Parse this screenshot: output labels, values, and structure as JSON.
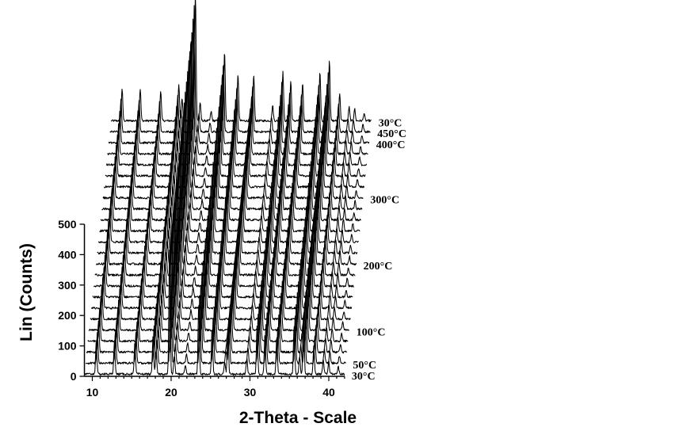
{
  "chart_data": {
    "type": "line",
    "title": "",
    "xlabel": "2-Theta - Scale",
    "ylabel": "Lin (Counts)",
    "xlim": [
      9,
      42
    ],
    "ylim": [
      0,
      500
    ],
    "x_ticks": [
      10,
      20,
      30,
      40
    ],
    "y_ticks": [
      0,
      100,
      200,
      300,
      400,
      500
    ],
    "grid": false,
    "layout": "stacked waterfall, 24 patterns offset upward and to the right",
    "series_count": 24,
    "peaks_2theta": [
      10.5,
      12.8,
      15.4,
      17.7,
      18.1,
      19.8,
      20.4,
      21.8,
      23.5,
      25.2,
      26.8,
      27.2,
      29.6,
      30.9,
      31.9,
      33.4,
      35.6,
      36.3,
      36.8,
      38.1,
      39.3,
      40.0,
      41.2
    ],
    "peak_heights": [
      105,
      105,
      100,
      120,
      75,
      420,
      60,
      30,
      230,
      150,
      40,
      150,
      50,
      160,
      130,
      125,
      160,
      60,
      200,
      90,
      45,
      40,
      25
    ],
    "temperature_labels": [
      {
        "text": "30°C",
        "series": 0
      },
      {
        "text": "50°C",
        "series": 1
      },
      {
        "text": "100°C",
        "series": 4
      },
      {
        "text": "200°C",
        "series": 10
      },
      {
        "text": "300°C",
        "series": 16
      },
      {
        "text": "400°C",
        "series": 21
      },
      {
        "text": "450°C",
        "series": 22
      },
      {
        "text": "30°C",
        "series": 23
      }
    ]
  }
}
